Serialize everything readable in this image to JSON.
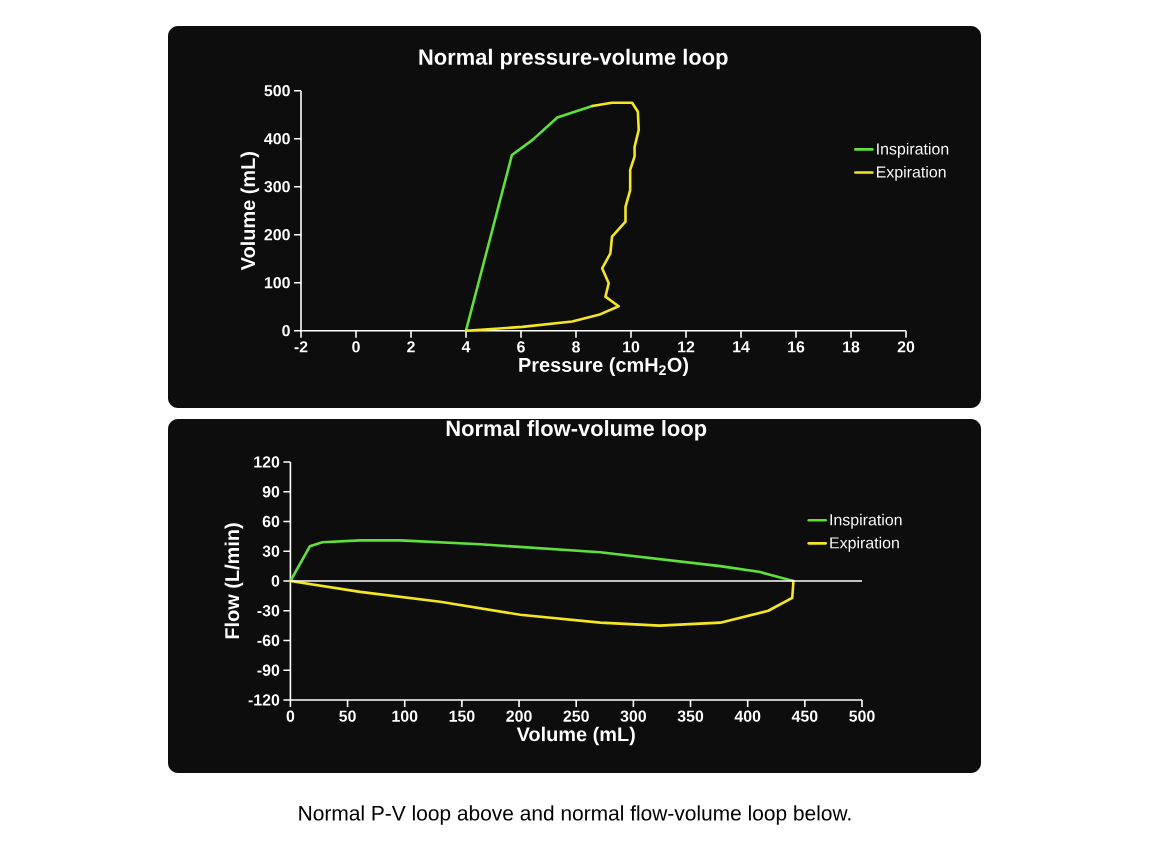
{
  "chart_data": [
    {
      "type": "line",
      "title": "Normal pressure-volume loop",
      "xlabel": "Pressure (cmH$_{2}$O)",
      "ylabel": "Volume (mL)",
      "xlim": [
        -2,
        20
      ],
      "ylim": [
        0,
        500
      ],
      "xticks": [
        -2,
        0,
        2,
        4,
        6,
        8,
        10,
        12,
        14,
        16,
        18,
        20
      ],
      "yticks": [
        0,
        100,
        200,
        300,
        400,
        500
      ],
      "legend": "top right",
      "series": [
        {
          "name": "Inspiration",
          "color": "#5fe03c",
          "x": [
            4,
            5.67,
            6.41,
            7.32,
            8.59
          ],
          "values": [
            0,
            366,
            397,
            444,
            468
          ]
        },
        {
          "name": "Expiration",
          "color": "#f5e622",
          "x": [
            8.59,
            9.31,
            10.04,
            10.25,
            10.28,
            10.13,
            10.13,
            9.97,
            9.97,
            9.8,
            9.8,
            9.31,
            9.25,
            8.95,
            9.19,
            9.07,
            9.55,
            8.83,
            7.86,
            6.05,
            4.0
          ],
          "values": [
            468,
            475,
            475,
            456,
            418,
            383,
            363,
            335,
            293,
            258,
            227,
            196,
            161,
            130,
            99,
            71,
            51,
            33,
            19,
            8,
            0
          ]
        }
      ]
    },
    {
      "type": "line",
      "title": "Normal flow-volume loop",
      "xlabel": "Volume (mL)",
      "ylabel": "Flow (L/min)",
      "xlim": [
        0,
        500
      ],
      "ylim": [
        -120,
        120
      ],
      "xticks": [
        0,
        50,
        100,
        150,
        200,
        250,
        300,
        350,
        400,
        450,
        500
      ],
      "yticks": [
        -120,
        -90,
        -60,
        -30,
        0,
        30,
        60,
        90,
        120
      ],
      "legend": "top right",
      "ref_lines": [
        {
          "axis": "y",
          "value": 0,
          "color": "#ffffff"
        }
      ],
      "annotations": [
        "Normal P-V loop above and normal flow-volume loop below."
      ],
      "series": [
        {
          "name": "Inspiration",
          "color": "#5fe03c",
          "x": [
            0,
            17,
            28,
            61,
            96,
            166,
            271,
            376,
            411,
            440
          ],
          "values": [
            0,
            35,
            39,
            41,
            41,
            37,
            29,
            15,
            9,
            0
          ]
        },
        {
          "name": "Expiration",
          "color": "#f5e622",
          "x": [
            440,
            439,
            418,
            376,
            323,
            271,
            201,
            131,
            61,
            0
          ],
          "values": [
            0,
            -17,
            -30,
            -42,
            -45,
            -42,
            -34,
            -21,
            -11,
            0
          ]
        }
      ]
    }
  ]
}
